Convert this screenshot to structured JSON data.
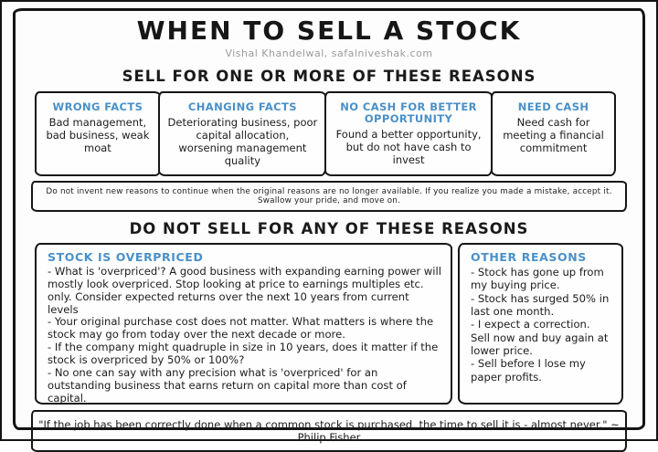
{
  "title": "WHEN TO SELL A STOCK",
  "subtitle": "Vishal Khandelwal, safalniveshak.com",
  "colors": {
    "accent_blue": "#4a90c8",
    "ink": "#161616",
    "subtitle_gray": "#9b9b9b"
  },
  "sell_section": {
    "heading": "SELL FOR ONE OR MORE OF THESE REASONS",
    "reasons": [
      {
        "title": "WRONG FACTS",
        "body": "Bad management, bad business, weak moat"
      },
      {
        "title": "CHANGING FACTS",
        "body": "Deteriorating business, poor capital allocation, worsening management quality"
      },
      {
        "title": "NO CASH FOR BETTER OPPORTUNITY",
        "body": "Found a better opportunity, but do not have cash to invest"
      },
      {
        "title": "NEED CASH",
        "body": "Need cash for meeting a financial commitment"
      }
    ],
    "note": "Do not invent new reasons to continue when the original reasons are no longer available. If you realize you made a mistake, accept it. Swallow your pride, and move on."
  },
  "dont_sell_section": {
    "heading": "DO NOT SELL FOR ANY OF THESE REASONS",
    "overpriced": {
      "title": "STOCK IS OVERPRICED",
      "bullets": [
        "- What is 'overpriced'? A good business with expanding earning power will mostly look overpriced. Stop looking at price to earnings multiples etc. only. Consider expected returns over the next 10 years from current levels",
        "- Your original purchase cost does not matter. What matters is where the stock may go from today over the next decade or more.",
        "- If the company might quadruple in size in 10 years, does it matter if the stock is overpriced by 50% or 100%?",
        "- No one can say with any precision what is 'overpriced' for an outstanding business that earns return on capital more than cost of capital."
      ]
    },
    "other": {
      "title": "OTHER REASONS",
      "bullets": [
        "- Stock has gone up from my buying price.",
        "- Stock has surged 50% in last one month.",
        "- I expect a correction. Sell now and buy again at lower price.",
        "- Sell before I lose my paper profits."
      ]
    }
  },
  "quote": "\"If the job has been correctly done when a common stock is purchased, the time to sell it is - almost never.\" ~ Philip Fisher"
}
